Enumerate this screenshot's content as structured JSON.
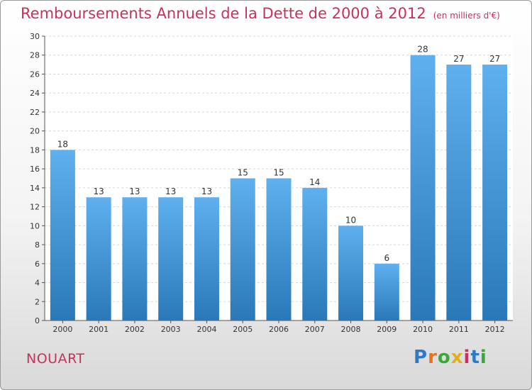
{
  "header": {
    "title": "Remboursements Annuels de la Dette de 2000 à 2012",
    "unit": "(en milliers d'€)"
  },
  "footer": {
    "commune": "NOUART",
    "logo_text": "Proxiti",
    "logo_colors": [
      "#2e7bc4",
      "#e8711f",
      "#3aa83a",
      "#e0b020",
      "#c8325a",
      "#2e7bc4",
      "#3aa83a"
    ]
  },
  "chart_data": {
    "type": "bar",
    "categories": [
      "2000",
      "2001",
      "2002",
      "2003",
      "2004",
      "2005",
      "2006",
      "2007",
      "2008",
      "2009",
      "2010",
      "2011",
      "2012"
    ],
    "values": [
      18,
      13,
      13,
      13,
      13,
      15,
      15,
      14,
      10,
      6,
      28,
      27,
      27
    ],
    "ylim": [
      0,
      30
    ],
    "yticks": [
      0,
      2,
      4,
      6,
      8,
      10,
      12,
      14,
      16,
      18,
      20,
      22,
      24,
      26,
      28,
      30
    ],
    "grid": true,
    "bar_color": "#4a9ee0"
  }
}
